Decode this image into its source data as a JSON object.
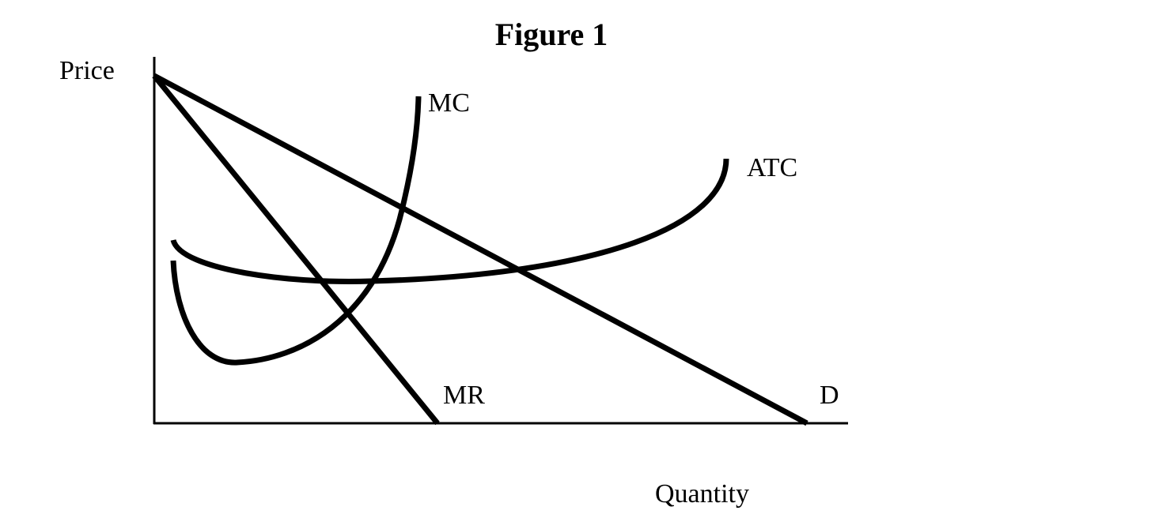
{
  "chart_data": {
    "type": "line",
    "title": "Figure 1",
    "xlabel": "Quantity",
    "ylabel": "Price",
    "grid": false,
    "legend": "none",
    "series": [
      {
        "name": "D"
      },
      {
        "name": "MR"
      },
      {
        "name": "MC"
      },
      {
        "name": "ATC"
      }
    ]
  },
  "colors": {
    "curve": "#000000",
    "background": "#ffffff"
  }
}
